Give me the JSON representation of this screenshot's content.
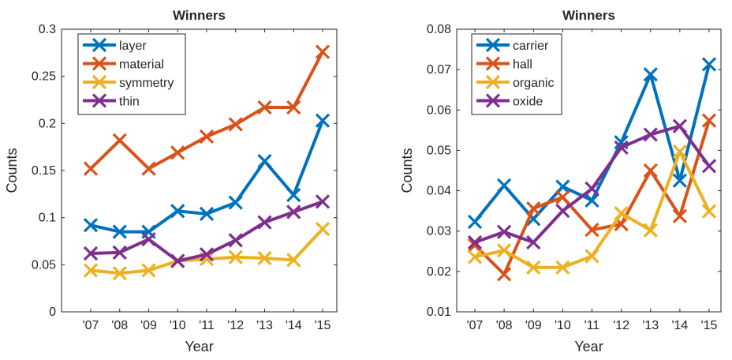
{
  "chart_data": [
    {
      "type": "line",
      "title": "Winners",
      "xlabel": "Year",
      "ylabel": "Counts",
      "categories": [
        "'07",
        "'08",
        "'09",
        "'10",
        "'11",
        "'12",
        "'13",
        "'14",
        "'15"
      ],
      "ylim": [
        0,
        0.3
      ],
      "yticks": [
        0,
        0.05,
        0.1,
        0.15,
        0.2,
        0.25,
        0.3
      ],
      "ytick_labels": [
        "0",
        "0.05",
        "0.1",
        "0.15",
        "0.2",
        "0.25",
        "0.3"
      ],
      "legend_position": "top-left",
      "grid": false,
      "marker": "x",
      "series": [
        {
          "name": "layer",
          "color": "#0072BD",
          "values": [
            0.092,
            0.085,
            0.085,
            0.107,
            0.104,
            0.116,
            0.16,
            0.124,
            0.203
          ]
        },
        {
          "name": "material",
          "color": "#D95319",
          "values": [
            0.152,
            0.182,
            0.152,
            0.169,
            0.186,
            0.199,
            0.217,
            0.217,
            0.276
          ]
        },
        {
          "name": "symmetry",
          "color": "#EDB120",
          "values": [
            0.044,
            0.041,
            0.044,
            0.054,
            0.056,
            0.058,
            0.057,
            0.055,
            0.088
          ]
        },
        {
          "name": "thin",
          "color": "#7E2F8E",
          "values": [
            0.062,
            0.063,
            0.077,
            0.054,
            0.061,
            0.076,
            0.095,
            0.106,
            0.117
          ]
        }
      ]
    },
    {
      "type": "line",
      "title": "Winners",
      "xlabel": "Year",
      "ylabel": "Counts",
      "categories": [
        "'07",
        "'08",
        "'09",
        "'10",
        "'11",
        "'12",
        "'13",
        "'14",
        "'15"
      ],
      "ylim": [
        0.01,
        0.08
      ],
      "yticks": [
        0.01,
        0.02,
        0.03,
        0.04,
        0.05,
        0.06,
        0.07,
        0.08
      ],
      "ytick_labels": [
        "0.01",
        "0.02",
        "0.03",
        "0.04",
        "0.05",
        "0.06",
        "0.07",
        "0.08"
      ],
      "legend_position": "top-left",
      "grid": false,
      "marker": "x",
      "series": [
        {
          "name": "carrier",
          "color": "#0072BD",
          "values": [
            0.0323,
            0.0413,
            0.033,
            0.041,
            0.0376,
            0.052,
            0.0688,
            0.0425,
            0.0713
          ]
        },
        {
          "name": "hall",
          "color": "#D95319",
          "values": [
            0.0265,
            0.0193,
            0.0356,
            0.0384,
            0.0303,
            0.0317,
            0.045,
            0.0337,
            0.0574
          ]
        },
        {
          "name": "organic",
          "color": "#EDB120",
          "values": [
            0.0236,
            0.0252,
            0.021,
            0.021,
            0.0238,
            0.0344,
            0.0302,
            0.0497,
            0.0349
          ]
        },
        {
          "name": "oxide",
          "color": "#7E2F8E",
          "values": [
            0.0272,
            0.0298,
            0.0272,
            0.035,
            0.0405,
            0.0507,
            0.0539,
            0.056,
            0.0461
          ]
        }
      ]
    }
  ]
}
